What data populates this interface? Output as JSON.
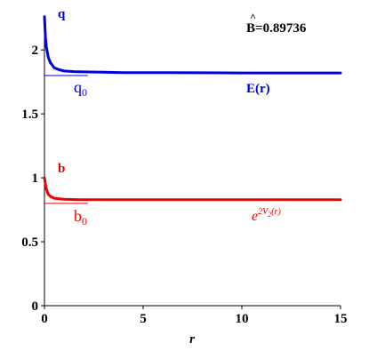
{
  "chart_data": {
    "type": "line",
    "title": "",
    "xlabel": "r",
    "ylabel": "",
    "xlim": [
      0,
      15
    ],
    "ylim": [
      0,
      2.3
    ],
    "grid": false,
    "x_ticks": [
      0,
      5,
      10,
      15
    ],
    "x_tick_labels": [
      "0",
      "5",
      "10",
      "15"
    ],
    "y_ticks": [
      0,
      0.5,
      1,
      1.5,
      2
    ],
    "y_tick_labels": [
      "0",
      "0.5",
      "1",
      "1.5",
      "2"
    ],
    "series": [
      {
        "name": "q",
        "color": "#0000e0",
        "x": [
          0,
          0.05,
          0.1,
          0.2,
          0.3,
          0.5,
          0.75,
          1,
          1.5,
          2,
          3,
          4,
          6,
          8,
          10,
          12,
          15
        ],
        "y": [
          2.26,
          2.1,
          2.02,
          1.94,
          1.9,
          1.86,
          1.845,
          1.835,
          1.83,
          1.828,
          1.826,
          1.822,
          1.822,
          1.821,
          1.82,
          1.82,
          1.82
        ]
      },
      {
        "name": "b",
        "color": "#ee0000",
        "x": [
          0,
          0.05,
          0.1,
          0.2,
          0.3,
          0.5,
          0.75,
          1,
          1.5,
          2,
          3,
          4,
          6,
          8,
          10,
          12,
          15
        ],
        "y": [
          1.0,
          0.95,
          0.91,
          0.87,
          0.855,
          0.84,
          0.835,
          0.832,
          0.83,
          0.829,
          0.828,
          0.828,
          0.828,
          0.828,
          0.828,
          0.828,
          0.828
        ]
      }
    ],
    "reference_lines": [
      {
        "name": "q0",
        "y": 1.8,
        "x_range": [
          0,
          2.2
        ],
        "color": "#0000e0"
      },
      {
        "name": "b0",
        "y": 0.8,
        "x_range": [
          0,
          2.2
        ],
        "color": "#ee0000"
      }
    ],
    "annotations": {
      "q_series_label": "q",
      "b_series_label": "b",
      "q0_base": "q",
      "q0_sub": "0",
      "b0_base": "b",
      "b0_sub": "0",
      "e_of_r": "E(r)",
      "exp_base": "e",
      "exp_sup": "2V",
      "exp_sup_sub": "2",
      "exp_sup_arg": "(r)",
      "b_hat_letter": "B",
      "b_hat_value": "=0.89736"
    }
  }
}
